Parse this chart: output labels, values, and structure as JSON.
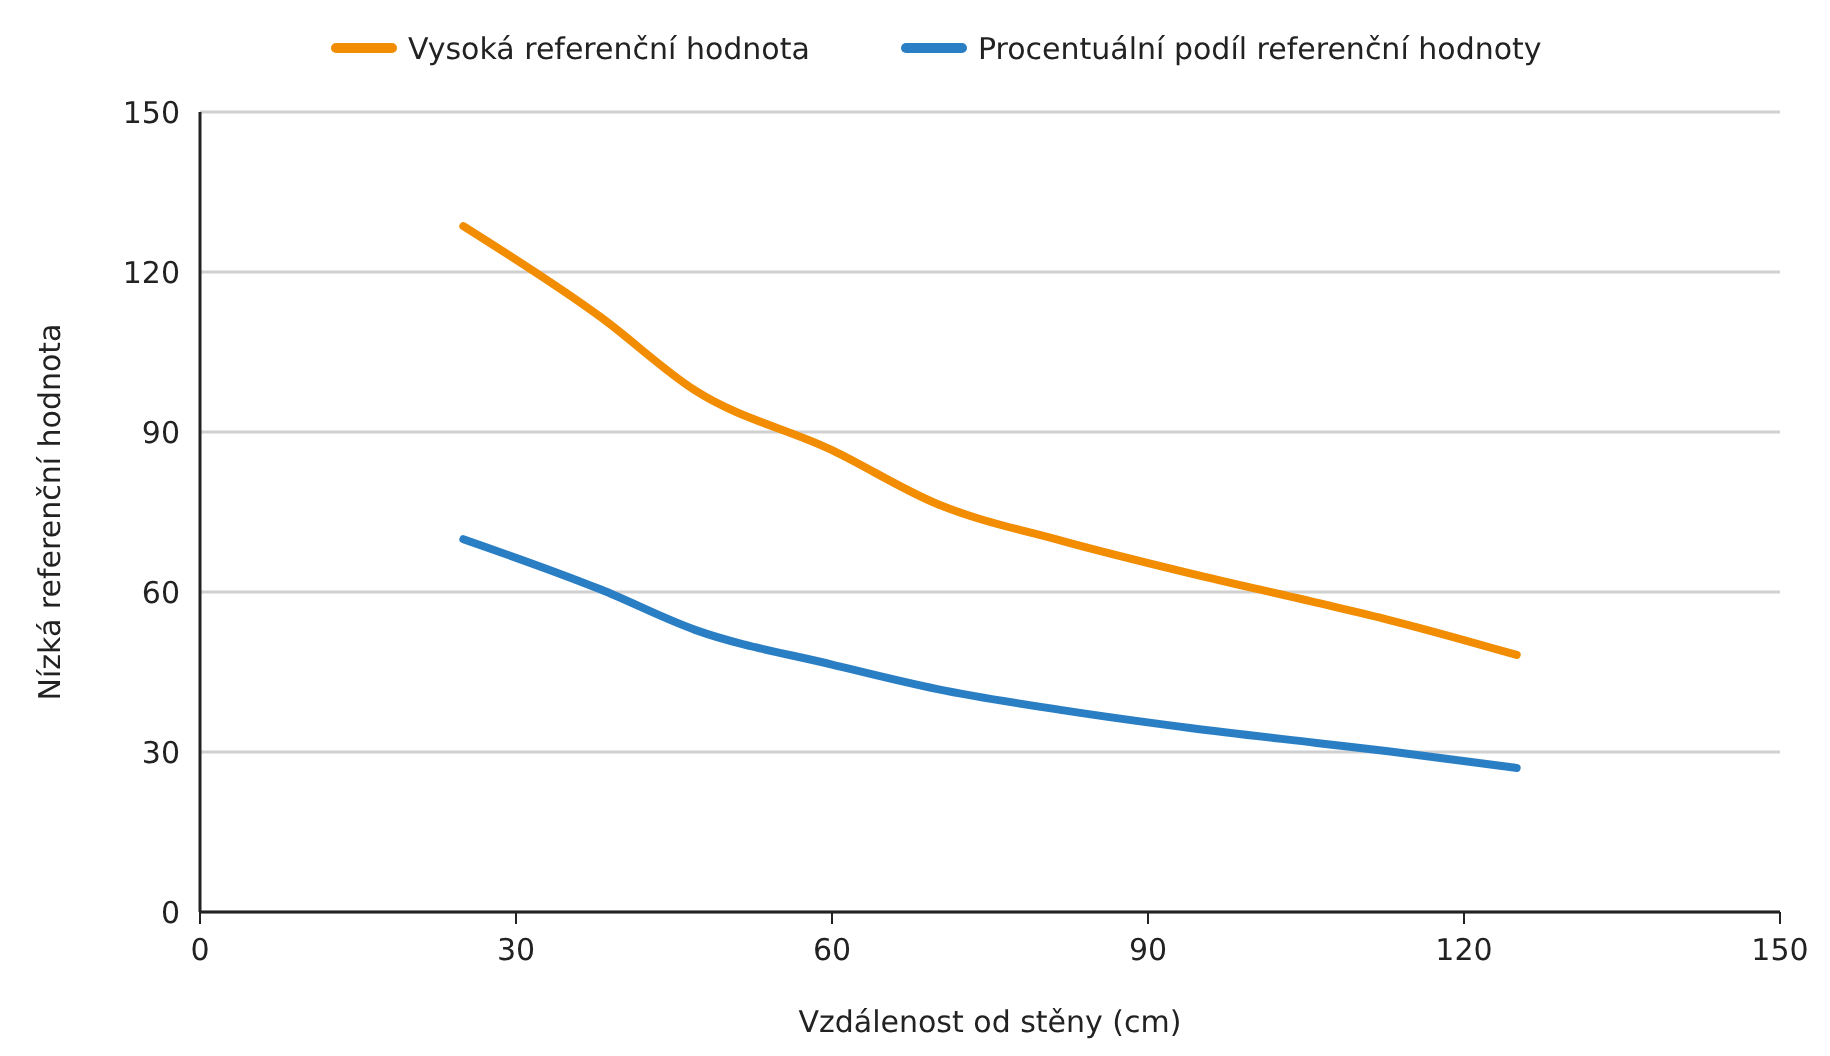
{
  "chart_data": {
    "type": "line",
    "xlabel": "Vzdálenost od stěny (cm)",
    "ylabel": "Nízká referenční hodnota",
    "xlim": [
      0,
      150
    ],
    "xticks": [
      0,
      30,
      60,
      90,
      120,
      150
    ],
    "ylim": [
      0,
      150
    ],
    "yticks": [
      0,
      30,
      60,
      90,
      120,
      150
    ],
    "grid": "y",
    "legend": "top",
    "marker": "none",
    "line_style": "solid",
    "series": [
      {
        "name": "Vysoká referenční hodnota",
        "color": "#f28c00",
        "x": [
          25,
          38,
          47,
          60,
          70,
          82,
          94,
          106,
          113,
          125
        ],
        "values": [
          128.6,
          111.6,
          97.8,
          86.6,
          76.5,
          69.5,
          63.5,
          58,
          54.7,
          48.2
        ]
      },
      {
        "name": "Procentuální podíl referenční hodnoty",
        "color": "#2a7fc4",
        "x": [
          25,
          38,
          47,
          60,
          70,
          82,
          94,
          106,
          113,
          125
        ],
        "values": [
          69.9,
          60.5,
          52.9,
          46.4,
          41.8,
          37.8,
          34.5,
          31.7,
          30.1,
          27
        ]
      }
    ]
  }
}
